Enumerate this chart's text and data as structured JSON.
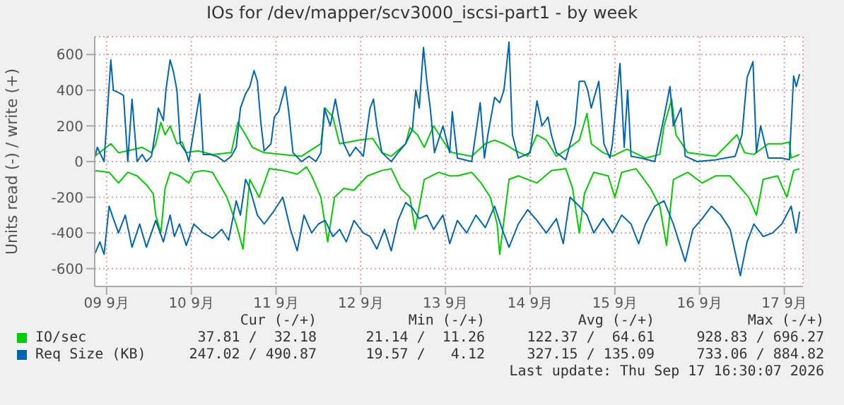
{
  "chart_data": {
    "type": "line",
    "title": "IOs for /dev/mapper/scv3000_iscsi-part1 - by week",
    "ylabel": "Units read (-) / write (+)",
    "xlim": [
      "--09-09T08:38",
      "--09-17T17:17"
    ],
    "xticks": [
      {
        "value": "--09-09T12:00",
        "label": "09 9月"
      },
      {
        "value": "--09-10T12:00",
        "label": "10 9月"
      },
      {
        "value": "--09-11T12:00",
        "label": "11 9月"
      },
      {
        "value": "--09-12T12:00",
        "label": "12 9月"
      },
      {
        "value": "--09-13T12:00",
        "label": "13 9月"
      },
      {
        "value": "--09-14T12:00",
        "label": "14 9月"
      },
      {
        "value": "--09-15T12:00",
        "label": "15 9月"
      },
      {
        "value": "--09-16T12:00",
        "label": "16 9月"
      },
      {
        "value": "--09-17T12:00",
        "label": "17 9月"
      }
    ],
    "ylim": [
      -700,
      700
    ],
    "yticks": [
      -600,
      -400,
      -200,
      0,
      200,
      400,
      600
    ],
    "grid": true,
    "legend": "bottom",
    "series": [
      {
        "name": "IO/sec",
        "color": "#00cc00",
        "x": [
          "--09-09T08:38",
          "--09-09T13:12",
          "--09-09T15:22",
          "--09-09T18:00",
          "--09-09T22:05",
          "--09-10T00:43",
          "--09-10T01:55",
          "--09-10T03:22",
          "--09-10T04:34",
          "--09-10T06:00",
          "--09-10T07:55",
          "--09-10T09:22",
          "--09-10T10:34",
          "--09-10T13:55",
          "--09-10T18:00",
          "--09-10T23:17",
          "--09-11T01:12",
          "--09-11T03:22",
          "--09-11T05:17",
          "--09-11T08:38",
          "--09-11T13:55",
          "--09-11T19:12",
          "--09-12T00:43",
          "--09-12T01:55",
          "--09-12T04:05",
          "--09-12T06:00",
          "--09-12T11:17",
          "--09-12T15:22",
          "--09-12T18:00",
          "--09-12T20:38",
          "--09-13T00:43",
          "--09-13T01:55",
          "--09-13T04:05",
          "--09-13T06:00",
          "--09-13T08:38",
          "--09-13T13:12",
          "--09-13T13:55",
          "--09-13T19:26",
          "--09-13T23:17",
          "--09-14T01:55",
          "--09-14T04:34",
          "--09-14T07:55",
          "--09-14T11:17",
          "--09-14T13:55",
          "--09-14T16:34",
          "--09-14T19:26",
          "--09-14T23:17",
          "--09-15T01:55",
          "--09-15T04:05",
          "--09-15T05:17",
          "--09-15T08:38",
          "--09-15T11:17",
          "--09-15T15:22",
          "--09-15T20:38",
          "--09-16T00:43",
          "--09-16T01:55",
          "--09-16T04:05",
          "--09-16T05:17",
          "--09-16T08:38",
          "--09-16T16:34",
          "--09-16T22:34",
          "--09-17T00:43",
          "--09-17T03:22",
          "--09-17T07:26",
          "--09-17T11:17",
          "--09-17T13:26",
          "--09-17T13:55",
          "--09-17T16:19"
        ],
        "values": [
          30,
          100,
          50,
          60,
          80,
          50,
          100,
          220,
          150,
          200,
          100,
          110,
          50,
          60,
          40,
          50,
          220,
          150,
          80,
          50,
          40,
          30,
          100,
          300,
          250,
          100,
          120,
          130,
          50,
          30,
          100,
          190,
          150,
          80,
          200,
          60,
          50,
          30,
          100,
          120,
          100,
          60,
          30,
          150,
          120,
          30,
          80,
          120,
          270,
          100,
          50,
          30,
          70,
          20,
          40,
          200,
          350,
          150,
          50,
          30,
          150,
          50,
          40,
          100,
          100,
          110,
          20,
          40
        ]
      },
      {
        "color": "#00cc00",
        "x": [
          "--09-09T08:38",
          "--09-09T12:43",
          "--09-09T15:22",
          "--09-09T18:00",
          "--09-09T20:38",
          "--09-09T23:17",
          "--09-10T01:12",
          "--09-10T01:55",
          "--09-10T03:22",
          "--09-10T04:34",
          "--09-10T06:00",
          "--09-10T08:38",
          "--09-10T11:17",
          "--09-10T12:43",
          "--09-10T15:22",
          "--09-10T18:00",
          "--09-10T22:05",
          "--09-11T00:43",
          "--09-11T02:38",
          "--09-11T04:34",
          "--09-11T07:12",
          "--09-11T10:05",
          "--09-11T13:55",
          "--09-11T18:00",
          "--09-11T20:38",
          "--09-11T22:05",
          "--09-12T00:43",
          "--09-12T02:38",
          "--09-12T04:34",
          "--09-12T07:12",
          "--09-12T10:05",
          "--09-12T13:55",
          "--09-12T18:00",
          "--09-12T20:38",
          "--09-12T23:17",
          "--09-13T01:55",
          "--09-13T03:22",
          "--09-13T06:00",
          "--09-13T10:05",
          "--09-13T13:12",
          "--09-13T15:22",
          "--09-13T19:26",
          "--09-13T22:05",
          "--09-14T00:43",
          "--09-14T02:38",
          "--09-14T03:22",
          "--09-14T06:00",
          "--09-14T08:38",
          "--09-14T13:55",
          "--09-14T18:00",
          "--09-14T22:05",
          "--09-15T00:00",
          "--09-15T01:55",
          "--09-15T03:22",
          "--09-15T06:00",
          "--09-15T10:05",
          "--09-15T12:00",
          "--09-15T13:55",
          "--09-15T18:00",
          "--09-15T22:05",
          "--09-16T00:43",
          "--09-16T02:38",
          "--09-16T04:34",
          "--09-16T08:38",
          "--09-16T12:43",
          "--09-16T16:34",
          "--09-16T20:38",
          "--09-17T01:55",
          "--09-17T04:05",
          "--09-17T06:00",
          "--09-17T10:05",
          "--09-17T12:43",
          "--09-17T14:38",
          "--09-17T16:19"
        ],
        "values": [
          -50,
          -60,
          -120,
          -60,
          -80,
          -130,
          -180,
          -300,
          -400,
          -150,
          -60,
          -80,
          -120,
          -60,
          -50,
          -60,
          -200,
          -350,
          -490,
          -100,
          -200,
          -40,
          -50,
          -70,
          -30,
          -80,
          -200,
          -450,
          -200,
          -150,
          -160,
          -80,
          -50,
          -40,
          -150,
          -200,
          -380,
          -100,
          -60,
          -80,
          -80,
          -60,
          -120,
          -200,
          -350,
          -520,
          -100,
          -80,
          -120,
          -50,
          -40,
          -150,
          -400,
          -180,
          -60,
          -80,
          -200,
          -60,
          -40,
          -150,
          -250,
          -470,
          -100,
          -60,
          -120,
          -80,
          -80,
          -200,
          -300,
          -100,
          -80,
          -200,
          -50,
          -40
        ]
      },
      {
        "name": "Req Size (KB)",
        "color": "#0066b3",
        "x": [
          "--09-09T08:38",
          "--09-09T09:22",
          "--09-09T11:17",
          "--09-09T13:12",
          "--09-09T13:55",
          "--09-09T16:05",
          "--09-09T16:48",
          "--09-09T18:00",
          "--09-09T19:12",
          "--09-09T20:38",
          "--09-09T22:05",
          "--09-09T23:17",
          "--09-10T00:43",
          "--09-10T01:55",
          "--09-10T02:38",
          "--09-10T04:05",
          "--09-10T04:48",
          "--09-10T06:00",
          "--09-10T06:58",
          "--09-10T07:55",
          "--09-10T08:53",
          "--09-10T10:34",
          "--09-10T11:17",
          "--09-10T14:24",
          "--09-10T15:22",
          "--09-10T17:17",
          "--09-10T19:12",
          "--09-10T21:22",
          "--09-10T23:17",
          "--09-11T00:43",
          "--09-11T01:55",
          "--09-11T03:22",
          "--09-11T04:34",
          "--09-11T05:46",
          "--09-11T06:43",
          "--09-11T07:41",
          "--09-11T08:38",
          "--09-11T10:34",
          "--09-11T11:31",
          "--09-11T12:43",
          "--09-11T13:41",
          "--09-11T14:38",
          "--09-11T15:36",
          "--09-11T16:48",
          "--09-11T19:12",
          "--09-11T21:22",
          "--09-11T23:17",
          "--09-12T00:43",
          "--09-12T01:41",
          "--09-12T03:22",
          "--09-12T04:48",
          "--09-12T06:00",
          "--09-12T07:12",
          "--09-12T08:53",
          "--09-12T10:34",
          "--09-12T12:43",
          "--09-12T14:38",
          "--09-12T15:36",
          "--09-12T16:34",
          "--09-12T18:00",
          "--09-12T20:38",
          "--09-12T22:34",
          "--09-13T00:43",
          "--09-13T02:38",
          "--09-13T03:36",
          "--09-13T04:34",
          "--09-13T05:46",
          "--09-13T06:43",
          "--09-13T07:41",
          "--09-13T08:53",
          "--09-13T11:17",
          "--09-13T13:12",
          "--09-13T13:55",
          "--09-13T15:22",
          "--09-13T19:26",
          "--09-13T21:50",
          "--09-13T23:02",
          "--09-14T00:00",
          "--09-14T01:55",
          "--09-14T03:22",
          "--09-14T04:34",
          "--09-14T06:00",
          "--09-14T06:58",
          "--09-14T08:38",
          "--09-14T12:00",
          "--09-14T13:55",
          "--09-14T15:22",
          "--09-14T17:02",
          "--09-14T18:00",
          "--09-14T19:26",
          "--09-14T22:05",
          "--09-15T00:43",
          "--09-15T01:55",
          "--09-15T03:22",
          "--09-15T04:19",
          "--09-15T05:17",
          "--09-15T07:26",
          "--09-15T08:53",
          "--09-15T10:34",
          "--09-15T11:17",
          "--09-15T13:26",
          "--09-15T14:38",
          "--09-15T15:36",
          "--09-15T16:34",
          "--09-15T19:26",
          "--09-15T23:17",
          "--09-16T01:55",
          "--09-16T03:36",
          "--09-16T04:34",
          "--09-16T06:43",
          "--09-16T07:55",
          "--09-16T11:17",
          "--09-16T16:34",
          "--09-16T22:05",
          "--09-17T00:00",
          "--09-17T01:26",
          "--09-17T03:07",
          "--09-17T04:05",
          "--09-17T05:17",
          "--09-17T07:26",
          "--09-17T11:17",
          "--09-17T13:26",
          "--09-17T14:38",
          "--09-17T15:22",
          "--09-17T16:19"
        ],
        "values": [
          20,
          80,
          0,
          570,
          400,
          380,
          370,
          0,
          350,
          0,
          40,
          0,
          30,
          180,
          300,
          230,
          400,
          570,
          500,
          400,
          100,
          50,
          0,
          380,
          40,
          40,
          30,
          0,
          30,
          80,
          300,
          380,
          420,
          510,
          450,
          220,
          60,
          100,
          250,
          280,
          350,
          420,
          280,
          50,
          0,
          30,
          0,
          50,
          300,
          200,
          350,
          220,
          100,
          30,
          80,
          30,
          300,
          350,
          200,
          50,
          0,
          50,
          100,
          180,
          400,
          300,
          640,
          450,
          300,
          50,
          200,
          50,
          280,
          20,
          0,
          330,
          20,
          150,
          360,
          330,
          400,
          670,
          150,
          20,
          50,
          340,
          200,
          250,
          150,
          50,
          10,
          200,
          450,
          450,
          400,
          300,
          450,
          100,
          20,
          100,
          550,
          80,
          400,
          30,
          20,
          0,
          250,
          420,
          200,
          300,
          30,
          0,
          10,
          30,
          150,
          470,
          560,
          50,
          200,
          20,
          20,
          10,
          480,
          420,
          490
        ]
      },
      {
        "color": "#0066b3",
        "x": [
          "--09-09T08:38",
          "--09-09T10:05",
          "--09-09T11:17",
          "--09-09T12:43",
          "--09-09T13:55",
          "--09-09T15:22",
          "--09-09T17:17",
          "--09-09T19:12",
          "--09-09T21:22",
          "--09-09T23:17",
          "--09-10T01:55",
          "--09-10T04:05",
          "--09-10T06:00",
          "--09-10T07:12",
          "--09-10T08:38",
          "--09-10T10:34",
          "--09-10T12:43",
          "--09-10T15:22",
          "--09-10T18:00",
          "--09-10T20:38",
          "--09-10T22:34",
          "--09-11T00:43",
          "--09-11T01:55",
          "--09-11T03:22",
          "--09-11T04:34",
          "--09-11T06:43",
          "--09-11T08:38",
          "--09-11T11:17",
          "--09-11T13:55",
          "--09-11T16:05",
          "--09-11T18:00",
          "--09-11T19:55",
          "--09-11T22:05",
          "--09-12T00:00",
          "--09-12T01:55",
          "--09-12T04:05",
          "--09-12T06:00",
          "--09-12T07:55",
          "--09-12T10:05",
          "--09-12T12:43",
          "--09-12T14:38",
          "--09-12T16:34",
          "--09-12T18:43",
          "--09-12T20:38",
          "--09-12T22:34",
          "--09-13T00:43",
          "--09-13T02:38",
          "--09-13T04:34",
          "--09-13T06:43",
          "--09-13T08:38",
          "--09-13T11:17",
          "--09-13T13:12",
          "--09-13T15:22",
          "--09-13T18:00",
          "--09-13T20:38",
          "--09-13T23:17",
          "--09-14T01:55",
          "--09-14T04:05",
          "--09-14T06:00",
          "--09-14T08:38",
          "--09-14T11:17",
          "--09-14T13:55",
          "--09-14T16:34",
          "--09-14T19:26",
          "--09-14T21:22",
          "--09-14T23:17",
          "--09-15T01:55",
          "--09-15T04:05",
          "--09-15T06:00",
          "--09-15T08:38",
          "--09-15T11:17",
          "--09-15T13:55",
          "--09-15T16:34",
          "--09-15T18:43",
          "--09-15T20:38",
          "--09-15T23:17",
          "--09-16T01:55",
          "--09-16T04:34",
          "--09-16T07:55",
          "--09-16T10:05",
          "--09-16T12:43",
          "--09-16T15:22",
          "--09-16T18:00",
          "--09-16T20:38",
          "--09-16T23:31",
          "--09-17T01:26",
          "--09-17T03:22",
          "--09-17T06:00",
          "--09-17T08:38",
          "--09-17T11:17",
          "--09-17T13:55",
          "--09-17T15:22",
          "--09-17T16:19"
        ],
        "values": [
          -520,
          -450,
          -520,
          -250,
          -320,
          -400,
          -300,
          -480,
          -350,
          -480,
          -330,
          -450,
          -300,
          -420,
          -350,
          -470,
          -350,
          -400,
          -430,
          -380,
          -440,
          -220,
          -300,
          -100,
          -150,
          -300,
          -350,
          -280,
          -200,
          -380,
          -500,
          -300,
          -400,
          -350,
          -330,
          -420,
          -380,
          -450,
          -330,
          -400,
          -420,
          -490,
          -380,
          -500,
          -330,
          -230,
          -260,
          -320,
          -300,
          -380,
          -300,
          -460,
          -330,
          -400,
          -300,
          -370,
          -250,
          -380,
          -480,
          -350,
          -270,
          -330,
          -400,
          -320,
          -460,
          -200,
          -250,
          -300,
          -400,
          -320,
          -400,
          -300,
          -350,
          -460,
          -350,
          -250,
          -220,
          -350,
          -560,
          -380,
          -320,
          -250,
          -300,
          -380,
          -640,
          -450,
          -350,
          -420,
          -400,
          -350,
          -250,
          -400,
          -280
        ]
      }
    ],
    "annotations": [
      "Cur (-/+)",
      "Min (-/+)",
      "Avg (-/+)",
      "Max (-/+)",
      "37.81 /  32.18",
      "21.14 /  11.26",
      "122.37 /  64.61",
      "928.83 / 696.27",
      "247.02 / 490.87",
      "19.57 /   4.12",
      "327.15 / 135.09",
      "733.06 / 884.82",
      "Last update: Thu Sep 17 16:30:07 2026"
    ]
  }
}
